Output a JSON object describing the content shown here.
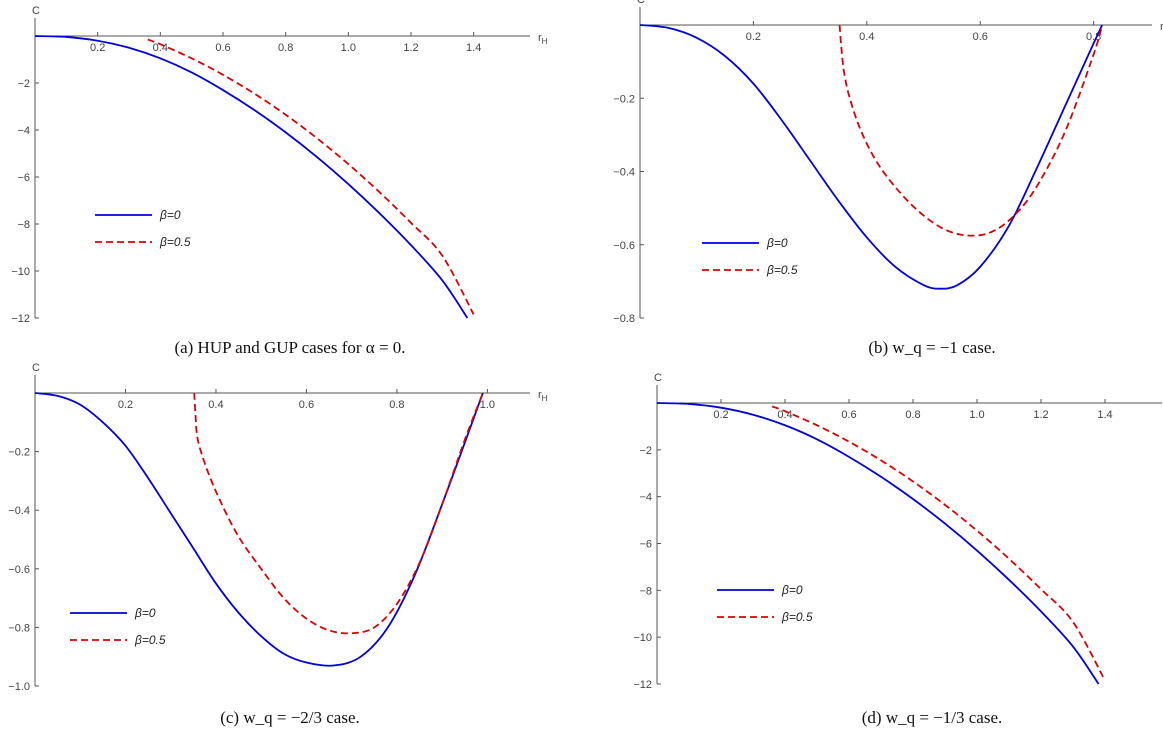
{
  "chart_data": [
    {
      "type": "line",
      "caption": "(a) HUP and GUP cases for α = 0.",
      "xlabel": "r_H",
      "ylabel": "C",
      "xlim": [
        0,
        1.5
      ],
      "ylim": [
        -12,
        0
      ],
      "xticks": [
        0.2,
        0.4,
        0.6,
        0.8,
        1.0,
        1.2,
        1.4
      ],
      "xtick_labels": [
        "0.2",
        "0.4",
        "0.6",
        "0.8",
        "1.0",
        "1.2",
        "1.4"
      ],
      "yticks": [
        -2,
        -4,
        -6,
        -8,
        -10,
        -12
      ],
      "ytick_labels": [
        "-2",
        "-4",
        "-6",
        "-8",
        "-10",
        "-12"
      ],
      "legend_position": "lower-left",
      "series": [
        {
          "name": "β=0",
          "color": "#0000dd",
          "dash": "solid",
          "x": [
            0,
            0.1,
            0.2,
            0.3,
            0.4,
            0.5,
            0.6,
            0.7,
            0.8,
            0.9,
            1.0,
            1.1,
            1.2,
            1.3,
            1.38
          ],
          "y": [
            0,
            -0.04,
            -0.2,
            -0.5,
            -0.95,
            -1.55,
            -2.3,
            -3.15,
            -4.1,
            -5.15,
            -6.3,
            -7.55,
            -8.9,
            -10.4,
            -12
          ]
        },
        {
          "name": "β=0.5",
          "color": "#dd0000",
          "dash": "dashed",
          "x": [
            0.36,
            0.4,
            0.5,
            0.6,
            0.7,
            0.8,
            0.9,
            1.0,
            1.1,
            1.2,
            1.3,
            1.4
          ],
          "y": [
            -0.15,
            -0.35,
            -0.95,
            -1.65,
            -2.45,
            -3.35,
            -4.35,
            -5.45,
            -6.65,
            -7.95,
            -9.35,
            -11.85
          ]
        }
      ]
    },
    {
      "type": "line",
      "caption": "(b) w_q = −1 case.",
      "xlabel": "r_H",
      "ylabel": "C",
      "xlim": [
        0,
        0.85
      ],
      "ylim": [
        -0.8,
        0
      ],
      "xticks": [
        0.2,
        0.4,
        0.6,
        0.8
      ],
      "xtick_labels": [
        "0.2",
        "0.4",
        "0.6",
        "0.8"
      ],
      "yticks": [
        -0.2,
        -0.4,
        -0.6,
        -0.8
      ],
      "ytick_labels": [
        "-0.2",
        "-0.4",
        "-0.6",
        "-0.8"
      ],
      "legend_position": "lower-left",
      "series": [
        {
          "name": "β=0",
          "color": "#0000dd",
          "dash": "solid",
          "x": [
            0,
            0.05,
            0.1,
            0.15,
            0.2,
            0.25,
            0.3,
            0.35,
            0.4,
            0.45,
            0.5,
            0.53,
            0.56,
            0.6,
            0.65,
            0.7,
            0.75,
            0.8,
            0.815
          ],
          "y": [
            0,
            -0.008,
            -0.035,
            -0.085,
            -0.16,
            -0.26,
            -0.37,
            -0.48,
            -0.58,
            -0.66,
            -0.71,
            -0.72,
            -0.71,
            -0.66,
            -0.55,
            -0.39,
            -0.22,
            -0.05,
            0
          ]
        },
        {
          "name": "β=0.5",
          "color": "#dd0000",
          "dash": "dashed",
          "x": [
            0.352,
            0.355,
            0.36,
            0.37,
            0.39,
            0.42,
            0.46,
            0.5,
            0.54,
            0.58,
            0.62,
            0.66,
            0.7,
            0.75,
            0.8,
            0.815
          ],
          "y": [
            0,
            -0.06,
            -0.13,
            -0.2,
            -0.29,
            -0.38,
            -0.46,
            -0.52,
            -0.56,
            -0.575,
            -0.565,
            -0.52,
            -0.44,
            -0.29,
            -0.08,
            0
          ]
        }
      ]
    },
    {
      "type": "line",
      "caption": "(c) w_q = −2/3 case.",
      "xlabel": "r_H",
      "ylabel": "C",
      "xlim": [
        0,
        1.05
      ],
      "ylim": [
        -1.0,
        0
      ],
      "xticks": [
        0.2,
        0.4,
        0.6,
        0.8,
        1.0
      ],
      "xtick_labels": [
        "0.2",
        "0.4",
        "0.6",
        "0.8",
        "1.0"
      ],
      "yticks": [
        -0.2,
        -0.4,
        -0.6,
        -0.8,
        -1.0
      ],
      "ytick_labels": [
        "-0.2",
        "-0.4",
        "-0.6",
        "-0.8",
        "-1.0"
      ],
      "legend_position": "lower-left",
      "series": [
        {
          "name": "β=0",
          "color": "#0000dd",
          "dash": "solid",
          "x": [
            0,
            0.05,
            0.1,
            0.15,
            0.2,
            0.25,
            0.3,
            0.35,
            0.4,
            0.45,
            0.5,
            0.55,
            0.6,
            0.66,
            0.72,
            0.78,
            0.84,
            0.9,
            0.95,
            0.99
          ],
          "y": [
            0,
            -0.01,
            -0.04,
            -0.1,
            -0.18,
            -0.29,
            -0.41,
            -0.53,
            -0.65,
            -0.75,
            -0.83,
            -0.89,
            -0.92,
            -0.93,
            -0.9,
            -0.8,
            -0.62,
            -0.38,
            -0.17,
            0
          ]
        },
        {
          "name": "β=0.5",
          "color": "#dd0000",
          "dash": "dashed",
          "x": [
            0.352,
            0.355,
            0.36,
            0.38,
            0.41,
            0.45,
            0.5,
            0.55,
            0.6,
            0.65,
            0.7,
            0.75,
            0.8,
            0.85,
            0.9,
            0.95,
            0.99
          ],
          "y": [
            0,
            -0.08,
            -0.16,
            -0.26,
            -0.37,
            -0.49,
            -0.6,
            -0.7,
            -0.77,
            -0.81,
            -0.82,
            -0.8,
            -0.72,
            -0.58,
            -0.38,
            -0.16,
            0
          ]
        }
      ]
    },
    {
      "type": "line",
      "caption": "(d) w_q = −1/3 case.",
      "xlabel": "r_H",
      "ylabel": "C",
      "xlim": [
        0,
        1.5
      ],
      "ylim": [
        -12,
        0
      ],
      "xticks": [
        0.2,
        0.4,
        0.6,
        0.8,
        1.0,
        1.2,
        1.4
      ],
      "xtick_labels": [
        "0.2",
        "0.4",
        "0.6",
        "0.8",
        "1.0",
        "1.2",
        "1.4"
      ],
      "yticks": [
        -2,
        -4,
        -6,
        -8,
        -10,
        -12
      ],
      "ytick_labels": [
        "-2",
        "-4",
        "-6",
        "-8",
        "-10",
        "-12"
      ],
      "legend_position": "lower-left",
      "series": [
        {
          "name": "β=0",
          "color": "#0000dd",
          "dash": "solid",
          "x": [
            0,
            0.1,
            0.2,
            0.3,
            0.4,
            0.5,
            0.6,
            0.7,
            0.8,
            0.9,
            1.0,
            1.1,
            1.2,
            1.3,
            1.38
          ],
          "y": [
            0,
            -0.04,
            -0.2,
            -0.5,
            -0.95,
            -1.55,
            -2.3,
            -3.15,
            -4.1,
            -5.15,
            -6.3,
            -7.55,
            -8.9,
            -10.4,
            -12
          ]
        },
        {
          "name": "β=0.5",
          "color": "#dd0000",
          "dash": "dashed",
          "x": [
            0.36,
            0.4,
            0.5,
            0.6,
            0.7,
            0.8,
            0.9,
            1.0,
            1.1,
            1.2,
            1.3,
            1.4
          ],
          "y": [
            -0.15,
            -0.35,
            -0.95,
            -1.65,
            -2.45,
            -3.35,
            -4.35,
            -5.45,
            -6.65,
            -7.95,
            -9.35,
            -11.85
          ]
        }
      ]
    }
  ]
}
